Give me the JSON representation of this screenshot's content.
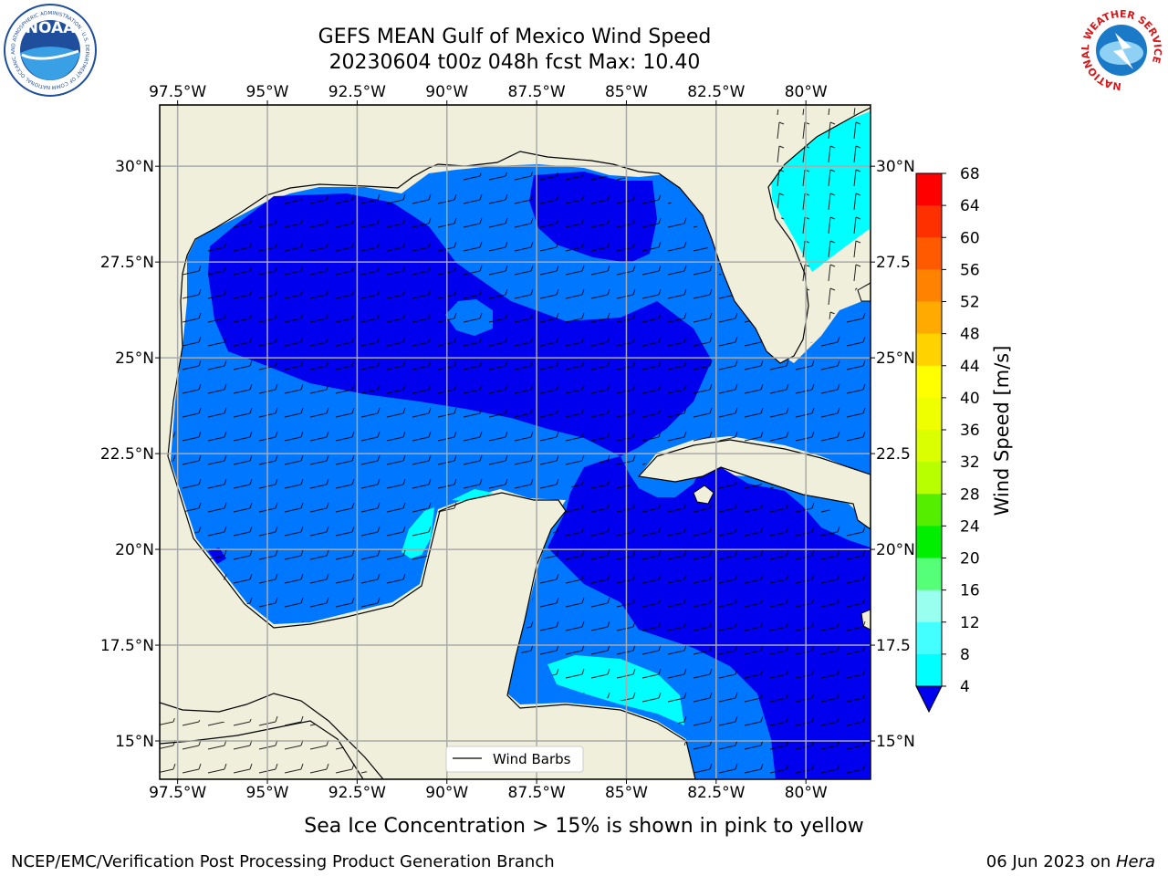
{
  "title": {
    "line1": "GEFS MEAN Gulf of Mexico Wind Speed",
    "line2": "20230604 t00z 048h fcst   Max: 10.40"
  },
  "logos": {
    "noaa": {
      "center_text": "NOAA",
      "ring_text": "NATIONAL OCEANIC AND ATMOSPHERIC ADMINISTRATION · U.S. DEPARTMENT OF COMMERCE ·",
      "icon": "noaa-logo-icon",
      "color": "#1f4e9c"
    },
    "nws": {
      "ring_text": "NATIONAL WEATHER SERVICE",
      "icon": "nws-logo-icon",
      "color": "#d7191c"
    }
  },
  "map": {
    "lon_ticks_top": [
      "97.5°W",
      "95°W",
      "92.5°W",
      "90°W",
      "87.5°W",
      "85°W",
      "82.5°W",
      "80°W"
    ],
    "lon_ticks_bottom": [
      "97.5°W",
      "95°W",
      "92.5°W",
      "90°W",
      "87.5°W",
      "85°W",
      "82.5°W",
      "80°W"
    ],
    "lat_ticks_left": [
      "30°N",
      "27.5°N",
      "25°N",
      "22.5°N",
      "20°N",
      "17.5°N",
      "15°N"
    ],
    "lat_ticks_right": [
      "30°N",
      "27.5",
      "25°N",
      "22.5",
      "20°N",
      "17.5",
      "15°N"
    ],
    "lon_range": [
      -98,
      -78.2
    ],
    "lat_range": [
      14,
      31.6
    ],
    "land_color": "#efefdc",
    "grid": true,
    "legend": {
      "label": "Wind Barbs",
      "placement": "bottom-center"
    }
  },
  "colorbar": {
    "label": "Wind Speed [m/s]",
    "ticks": [
      "68",
      "64",
      "60",
      "56",
      "52",
      "48",
      "44",
      "40",
      "36",
      "32",
      "28",
      "24",
      "20",
      "16",
      "12",
      "8",
      "4"
    ],
    "colors": [
      "#ff0000",
      "#ff3000",
      "#ff5a00",
      "#ff8200",
      "#ffaa00",
      "#ffd200",
      "#ffff00",
      "#f0ff00",
      "#d9ff00",
      "#b8ff00",
      "#55ee00",
      "#00ee00",
      "#55ff77",
      "#99ffee",
      "#44ffff",
      "#00ffff",
      "#0077ff"
    ],
    "extend_color": "#0000ee"
  },
  "note": "Sea Ice Concentration > 15% is shown in pink to yellow",
  "footer": {
    "left": "NCEP/EMC/Verification Post Processing Product Generation Branch",
    "right_prefix": "06 Jun 2023 on ",
    "right_machine": "Hera"
  }
}
